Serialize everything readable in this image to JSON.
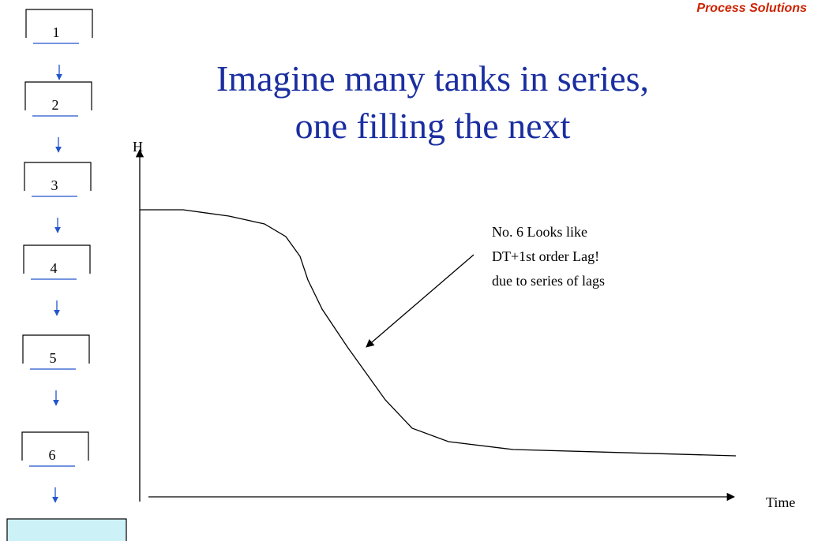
{
  "header": {
    "brand": "Process Solutions"
  },
  "title": {
    "line1": "Imagine many tanks in series,",
    "line2": "one filling the next"
  },
  "tanks": [
    "1",
    "2",
    "3",
    "4",
    "5",
    "6"
  ],
  "axes": {
    "y_label": "H",
    "x_label": "Time"
  },
  "annotation": {
    "lines": [
      "No. 6 Looks like",
      "DT+1st order Lag!",
      "due to series of lags"
    ]
  }
}
